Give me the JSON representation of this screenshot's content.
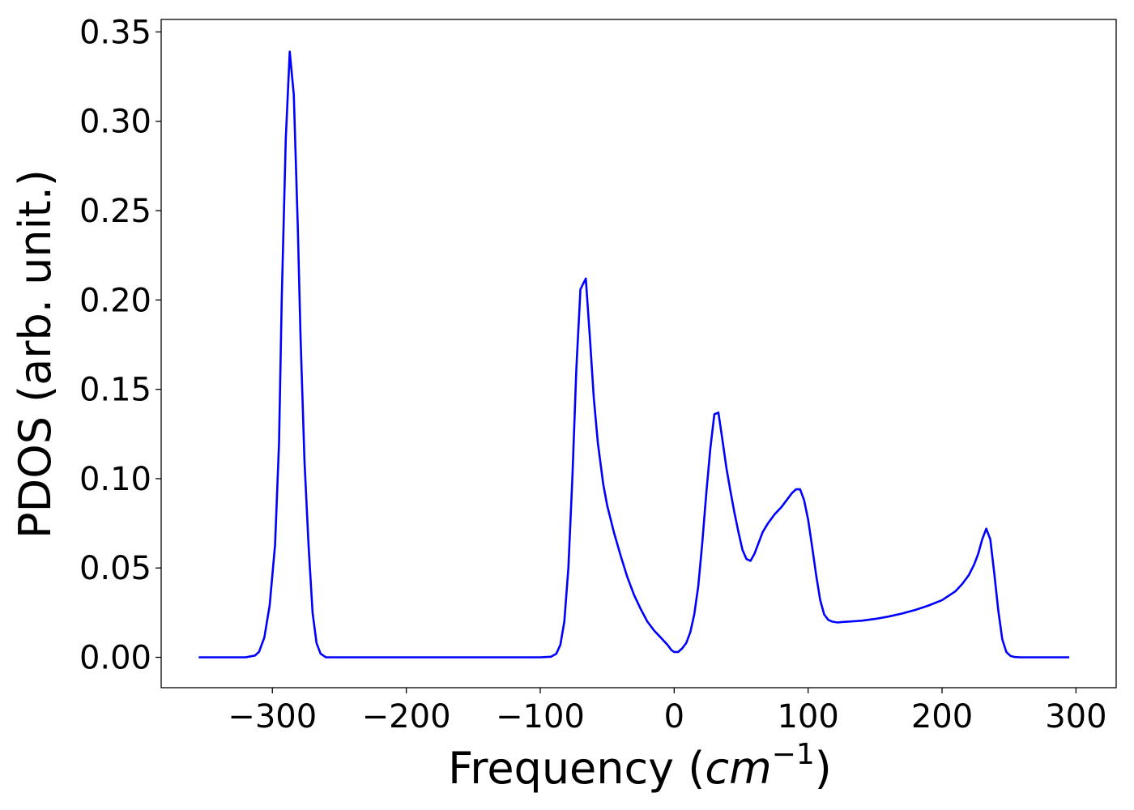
{
  "chart_data": {
    "type": "line",
    "xlabel": "Frequency (cm⁻¹)",
    "xlabel_parts": {
      "prefix": "Frequency (",
      "unit_base": "cm",
      "unit_exp": "−1",
      "suffix": ")"
    },
    "ylabel": "PDOS (arb. unit.)",
    "xlim": [
      -383,
      330
    ],
    "ylim": [
      -0.017,
      0.357
    ],
    "grid": false,
    "legend": "none",
    "x_ticks": [
      {
        "value": -300,
        "label": "−300"
      },
      {
        "value": -200,
        "label": "−200"
      },
      {
        "value": -100,
        "label": "−100"
      },
      {
        "value": 0,
        "label": "0"
      },
      {
        "value": 100,
        "label": "100"
      },
      {
        "value": 200,
        "label": "200"
      },
      {
        "value": 300,
        "label": "300"
      }
    ],
    "y_ticks": [
      {
        "value": 0.0,
        "label": "0.00"
      },
      {
        "value": 0.05,
        "label": "0.05"
      },
      {
        "value": 0.1,
        "label": "0.10"
      },
      {
        "value": 0.15,
        "label": "0.15"
      },
      {
        "value": 0.2,
        "label": "0.20"
      },
      {
        "value": 0.25,
        "label": "0.25"
      },
      {
        "value": 0.3,
        "label": "0.30"
      },
      {
        "value": 0.35,
        "label": "0.35"
      }
    ],
    "series": [
      {
        "color": "#0000ff",
        "x": [
          -355,
          -320,
          -313,
          -310,
          -306,
          -302,
          -298,
          -295,
          -293,
          -290,
          -287,
          -284,
          -281,
          -279,
          -276,
          -273,
          -270,
          -267,
          -264,
          -260,
          -250,
          -200,
          -150,
          -100,
          -92,
          -88,
          -85,
          -82,
          -79,
          -76,
          -73,
          -70,
          -66,
          -63,
          -60,
          -57,
          -53,
          -50,
          -45,
          -40,
          -35,
          -30,
          -25,
          -20,
          -15,
          -10,
          -5,
          -2,
          0,
          3,
          6,
          9,
          12,
          15,
          18,
          21,
          24,
          27,
          30,
          33,
          36,
          39,
          42,
          45,
          48,
          51,
          54,
          57,
          60,
          63,
          66,
          70,
          75,
          80,
          85,
          88,
          91,
          94,
          97,
          100,
          103,
          106,
          109,
          112,
          115,
          118,
          122,
          126,
          130,
          140,
          150,
          160,
          170,
          180,
          190,
          200,
          205,
          210,
          215,
          220,
          224,
          227,
          230,
          233,
          236,
          239,
          242,
          245,
          248,
          251,
          254,
          258,
          265,
          280,
          295
        ],
        "y": [
          0.0,
          0.0,
          0.001,
          0.003,
          0.011,
          0.029,
          0.063,
          0.12,
          0.2,
          0.29,
          0.339,
          0.315,
          0.24,
          0.18,
          0.11,
          0.063,
          0.025,
          0.008,
          0.002,
          0.0,
          0.0,
          0.0,
          0.0,
          0.0,
          0.0003,
          0.002,
          0.007,
          0.02,
          0.05,
          0.1,
          0.162,
          0.206,
          0.212,
          0.18,
          0.145,
          0.12,
          0.097,
          0.085,
          0.07,
          0.057,
          0.045,
          0.035,
          0.027,
          0.02,
          0.015,
          0.011,
          0.007,
          0.004,
          0.003,
          0.003,
          0.005,
          0.008,
          0.014,
          0.024,
          0.04,
          0.064,
          0.092,
          0.117,
          0.136,
          0.137,
          0.122,
          0.106,
          0.093,
          0.081,
          0.07,
          0.06,
          0.055,
          0.054,
          0.058,
          0.064,
          0.07,
          0.075,
          0.08,
          0.084,
          0.089,
          0.092,
          0.094,
          0.094,
          0.088,
          0.077,
          0.062,
          0.046,
          0.032,
          0.024,
          0.021,
          0.02,
          0.0195,
          0.0198,
          0.02,
          0.0205,
          0.0215,
          0.0228,
          0.0245,
          0.0265,
          0.029,
          0.032,
          0.0345,
          0.037,
          0.041,
          0.046,
          0.052,
          0.058,
          0.066,
          0.072,
          0.066,
          0.047,
          0.026,
          0.01,
          0.003,
          0.0008,
          0.0002,
          0.0,
          0.0,
          0.0,
          0.0
        ]
      }
    ]
  }
}
